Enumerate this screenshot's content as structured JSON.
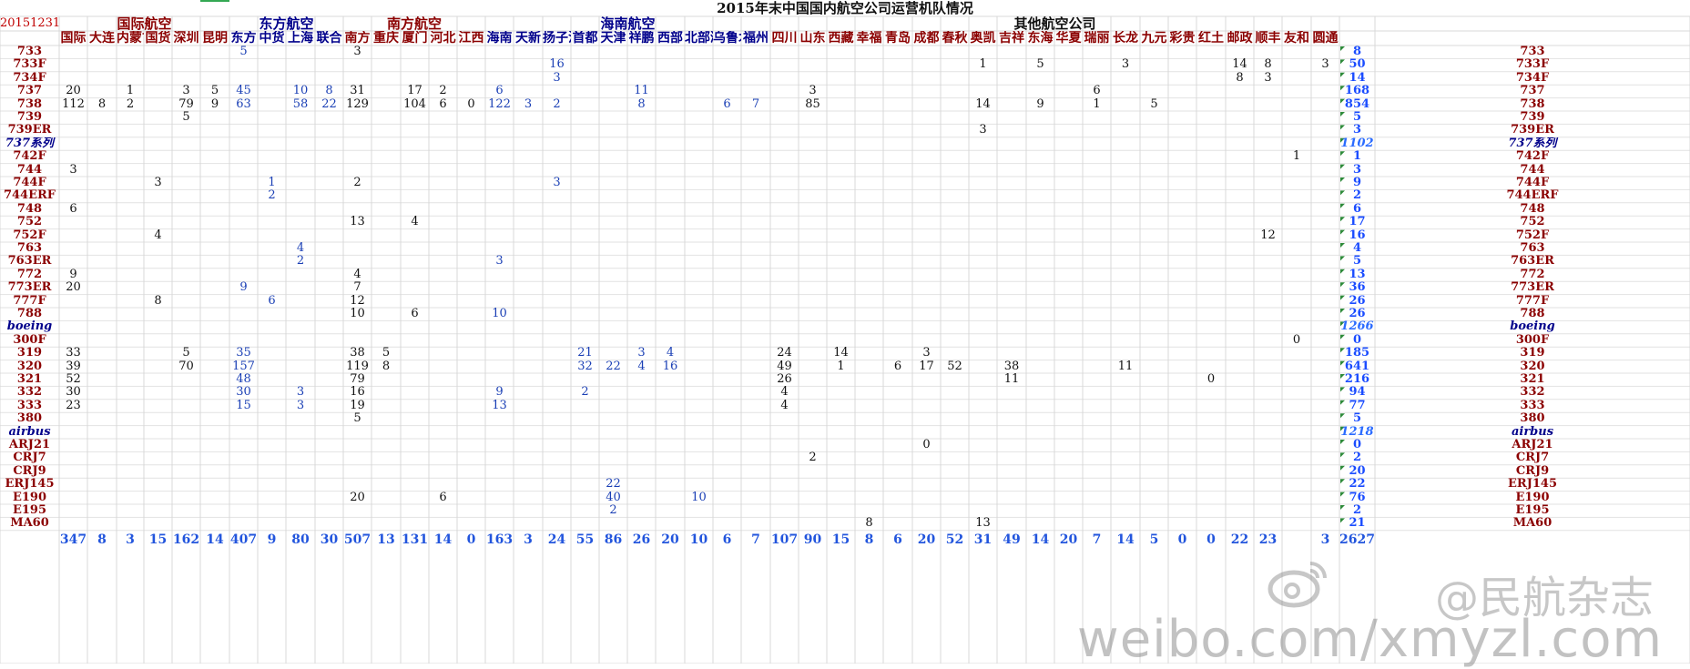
{
  "title": "2015年末中国国内航空公司运营机队情况",
  "date": "20151231",
  "groups": [
    {
      "label": "国际航空",
      "color": "#8b0000"
    },
    {
      "label": "东方航空",
      "color": "#00008b"
    },
    {
      "label": "南方航空",
      "color": "#8b0000"
    },
    {
      "label": "海南航空",
      "color": "#00008b"
    },
    {
      "label": "其他航空公司",
      "color": "#111111"
    }
  ],
  "airlines": [
    "国际",
    "大连",
    "内蒙古",
    "国货",
    "深圳",
    "昆明",
    "东方",
    "中货",
    "上海",
    "联合",
    "南方",
    "重庆",
    "厦门",
    "河北",
    "江西",
    "海南",
    "天新",
    "扬子江",
    "首都",
    "天津",
    "祥鹏",
    "西部",
    "北部湾",
    "乌鲁木",
    "福州",
    "四川",
    "山东",
    "西藏",
    "幸福",
    "青岛",
    "成都",
    "春秋",
    "奥凯",
    "吉祥",
    "东海",
    "华夏",
    "瑞丽",
    "长龙",
    "九元",
    "彩贵",
    "红土",
    "邮政",
    "顺丰",
    "友和",
    "圆通"
  ],
  "airline_colors": [
    "#8b0000",
    "#8b0000",
    "#8b0000",
    "#8b0000",
    "#8b0000",
    "#8b0000",
    "#00008b",
    "#00008b",
    "#00008b",
    "#00008b",
    "#8b0000",
    "#8b0000",
    "#8b0000",
    "#8b0000",
    "#8b0000",
    "#00008b",
    "#00008b",
    "#00008b",
    "#00008b",
    "#00008b",
    "#00008b",
    "#00008b",
    "#00008b",
    "#00008b",
    "#00008b",
    "#8b0000",
    "#8b0000",
    "#8b0000",
    "#8b0000",
    "#8b0000",
    "#8b0000",
    "#8b0000",
    "#8b0000",
    "#8b0000",
    "#8b0000",
    "#8b0000",
    "#8b0000",
    "#8b0000",
    "#8b0000",
    "#8b0000",
    "#8b0000",
    "#8b0000",
    "#8b0000",
    "#8b0000",
    "#8b0000"
  ],
  "rows": [
    {
      "label": "733",
      "kind": "type",
      "cells": {
        "6": "5",
        "10": "3"
      },
      "total": "8"
    },
    {
      "label": "733F",
      "kind": "type",
      "cells": {
        "17": "16",
        "32": "1",
        "34": "5",
        "37": "3",
        "41": "14",
        "42": "8",
        "44": "3"
      },
      "total": "50"
    },
    {
      "label": "734F",
      "kind": "type",
      "cells": {
        "17": "3",
        "41": "8",
        "42": "3"
      },
      "total": "14"
    },
    {
      "label": "737",
      "kind": "type",
      "cells": {
        "0": "20",
        "2": "1",
        "4": "3",
        "5": "5",
        "6": "45",
        "8": "10",
        "9": "8",
        "10": "31",
        "12": "17",
        "13": "2",
        "15": "6",
        "20": "11",
        "26": "3",
        "36": "6"
      },
      "total": "168"
    },
    {
      "label": "738",
      "kind": "type",
      "cells": {
        "0": "112",
        "1": "8",
        "2": "2",
        "4": "79",
        "5": "9",
        "6": "63",
        "8": "58",
        "9": "22",
        "10": "129",
        "12": "104",
        "13": "6",
        "14": "0",
        "15": "122",
        "16": "3",
        "17": "2",
        "20": "8",
        "23": "6",
        "24": "7",
        "26": "85",
        "32": "14",
        "34": "9",
        "36": "1",
        "38": "5"
      },
      "total": "854"
    },
    {
      "label": "739",
      "kind": "type",
      "cells": {
        "4": "5"
      },
      "total": "5"
    },
    {
      "label": "739ER",
      "kind": "type",
      "cells": {
        "32": "3"
      },
      "total": "3"
    },
    {
      "label": "737系列",
      "kind": "family",
      "cells": {},
      "total": "1102"
    },
    {
      "label": "742F",
      "kind": "type",
      "cells": {
        "43": "1"
      },
      "total": "1"
    },
    {
      "label": "744",
      "kind": "type",
      "cells": {
        "0": "3"
      },
      "total": "3"
    },
    {
      "label": "744F",
      "kind": "type",
      "cells": {
        "3": "3",
        "7": "1",
        "10": "2",
        "17": "3"
      },
      "total": "9"
    },
    {
      "label": "744ERF",
      "kind": "type",
      "cells": {
        "7": "2"
      },
      "total": "2"
    },
    {
      "label": "748",
      "kind": "type",
      "cells": {
        "0": "6"
      },
      "total": "6"
    },
    {
      "label": "752",
      "kind": "type",
      "cells": {
        "10": "13",
        "12": "4"
      },
      "total": "17"
    },
    {
      "label": "752F",
      "kind": "type",
      "cells": {
        "3": "4",
        "42": "12"
      },
      "total": "16"
    },
    {
      "label": "763",
      "kind": "type",
      "cells": {
        "8": "4"
      },
      "total": "4"
    },
    {
      "label": "763ER",
      "kind": "type",
      "cells": {
        "8": "2",
        "15": "3"
      },
      "total": "5"
    },
    {
      "label": "772",
      "kind": "type",
      "cells": {
        "0": "9",
        "10": "4"
      },
      "total": "13"
    },
    {
      "label": "773ER",
      "kind": "type",
      "cells": {
        "0": "20",
        "6": "9",
        "10": "7"
      },
      "total": "36"
    },
    {
      "label": "777F",
      "kind": "type",
      "cells": {
        "3": "8",
        "7": "6",
        "10": "12"
      },
      "total": "26"
    },
    {
      "label": "788",
      "kind": "type",
      "cells": {
        "10": "10",
        "12": "6",
        "15": "10"
      },
      "total": "26"
    },
    {
      "label": "boeing",
      "kind": "family",
      "cells": {},
      "total": "1266"
    },
    {
      "label": "300F",
      "kind": "type",
      "cells": {
        "43": "0"
      },
      "total": "0"
    },
    {
      "label": "319",
      "kind": "type",
      "cells": {
        "0": "33",
        "4": "5",
        "6": "35",
        "10": "38",
        "11": "5",
        "18": "21",
        "20": "3",
        "21": "4",
        "25": "24",
        "27": "14",
        "30": "3"
      },
      "total": "185"
    },
    {
      "label": "320",
      "kind": "type",
      "cells": {
        "0": "39",
        "4": "70",
        "6": "157",
        "10": "119",
        "11": "8",
        "18": "32",
        "19": "22",
        "20": "4",
        "21": "16",
        "25": "49",
        "27": "1",
        "29": "6",
        "30": "17",
        "31": "52",
        "33": "38",
        "37": "11"
      },
      "total": "641"
    },
    {
      "label": "321",
      "kind": "type",
      "cells": {
        "0": "52",
        "6": "48",
        "10": "79",
        "25": "26",
        "33": "11",
        "40": "0"
      },
      "total": "216"
    },
    {
      "label": "332",
      "kind": "type",
      "cells": {
        "0": "30",
        "6": "30",
        "8": "3",
        "10": "16",
        "15": "9",
        "18": "2",
        "25": "4"
      },
      "total": "94"
    },
    {
      "label": "333",
      "kind": "type",
      "cells": {
        "0": "23",
        "6": "15",
        "8": "3",
        "10": "19",
        "15": "13",
        "25": "4"
      },
      "total": "77"
    },
    {
      "label": "380",
      "kind": "type",
      "cells": {
        "10": "5"
      },
      "total": "5"
    },
    {
      "label": "airbus",
      "kind": "family",
      "cells": {},
      "total": "1218"
    },
    {
      "label": "ARJ21",
      "kind": "type",
      "cells": {
        "30": "0"
      },
      "total": "0"
    },
    {
      "label": "CRJ7",
      "kind": "type",
      "cells": {
        "26": "2"
      },
      "total": "2"
    },
    {
      "label": "CRJ9",
      "kind": "type",
      "cells": {},
      "total": "20"
    },
    {
      "label": "ERJ145",
      "kind": "type",
      "cells": {
        "19": "22"
      },
      "total": "22"
    },
    {
      "label": "E190",
      "kind": "type",
      "cells": {
        "10": "20",
        "13": "6",
        "19": "40",
        "22": "10"
      },
      "total": "76"
    },
    {
      "label": "E195",
      "kind": "type",
      "cells": {
        "19": "2"
      },
      "total": "2"
    },
    {
      "label": "MA60",
      "kind": "type",
      "cells": {
        "28": "8",
        "32": "13"
      },
      "total": "21"
    }
  ],
  "bottom_totals": [
    "347",
    "8",
    "3",
    "15",
    "162",
    "14",
    "407",
    "9",
    "80",
    "30",
    "507",
    "13",
    "131",
    "14",
    "0",
    "163",
    "3",
    "24",
    "55",
    "86",
    "26",
    "20",
    "10",
    "6",
    "7",
    "107",
    "90",
    "15",
    "8",
    "6",
    "20",
    "52",
    "31",
    "49",
    "14",
    "20",
    "7",
    "14",
    "5",
    "0",
    "0",
    "22",
    "23",
    "",
    "3"
  ],
  "grand_total": "2627",
  "watermark": {
    "url": "weibo.com/xmyzl.com",
    "handle": "@民航杂志"
  }
}
